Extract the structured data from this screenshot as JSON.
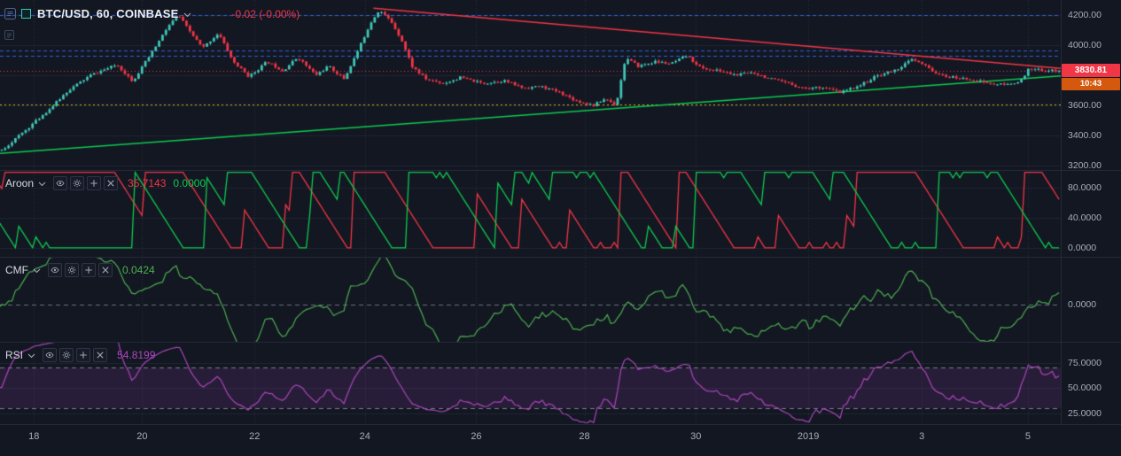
{
  "header": {
    "symbol_title": "BTC/USD, 60, COINBASE",
    "change_text": "-0.02 (-0.00%)",
    "change_color": "#f23645"
  },
  "legend_buttons": [
    "eye",
    "gear",
    "plus",
    "close"
  ],
  "panels": {
    "aroon": {
      "label": "Aroon",
      "values": [
        {
          "text": "35.7143",
          "color": "#f23645"
        },
        {
          "text": "0.0000",
          "color": "#0ecb4f"
        }
      ]
    },
    "cmf": {
      "label": "CMF",
      "value": {
        "text": "0.0424",
        "color": "#4caf50"
      }
    },
    "rsi": {
      "label": "RSI",
      "value": {
        "text": "54.8199",
        "color": "#ab47bc"
      }
    }
  },
  "price_tag": {
    "text": "3830.81",
    "bg": "#f23645"
  },
  "countdown_tag": {
    "text": "10:43",
    "bg": "#d4590e"
  },
  "scales": {
    "price": {
      "labels": [
        {
          "text": "4200.00",
          "v": 4200
        },
        {
          "text": "4000.00",
          "v": 4000
        },
        {
          "text": "3600.00",
          "v": 3600
        },
        {
          "text": "3400.00",
          "v": 3400
        },
        {
          "text": "3200.00",
          "v": 3200
        }
      ]
    },
    "aroon": {
      "labels": [
        {
          "text": "80.0000",
          "v": 80
        },
        {
          "text": "40.0000",
          "v": 40
        },
        {
          "text": "0.0000",
          "v": 0
        }
      ]
    },
    "cmf": {
      "labels": [
        {
          "text": "0.0000",
          "v": 0
        }
      ]
    },
    "rsi": {
      "labels": [
        {
          "text": "75.0000",
          "v": 75
        },
        {
          "text": "50.0000",
          "v": 50
        },
        {
          "text": "25.0000",
          "v": 25
        }
      ]
    }
  },
  "theme": {
    "background": "#131722",
    "axis_text": "#a6adbb",
    "up_color": "#3fc6b6",
    "down_color": "#f23645"
  },
  "chart_data": {
    "type": "candlestick",
    "symbol": "BTC/USD",
    "interval": "60",
    "exchange": "COINBASE",
    "seed": 11,
    "up_color": "#3fc6b6",
    "down_color": "#f23645",
    "x_ticks": [
      {
        "label": "18",
        "t": 0.032
      },
      {
        "label": "20",
        "t": 0.134
      },
      {
        "label": "22",
        "t": 0.24
      },
      {
        "label": "24",
        "t": 0.344
      },
      {
        "label": "26",
        "t": 0.449
      },
      {
        "label": "28",
        "t": 0.551
      },
      {
        "label": "30",
        "t": 0.656
      },
      {
        "label": "2019",
        "t": 0.762
      },
      {
        "label": "3",
        "t": 0.869
      },
      {
        "label": "5",
        "t": 0.969
      }
    ],
    "panes": {
      "price": {
        "range": [
          3170,
          4300
        ],
        "grid": [
          3200,
          3400,
          3600,
          3800,
          4000,
          4200
        ],
        "candle_count": 310,
        "last_price": 3830.81,
        "levels": {
          "blue_dashed": [
            4200,
            3966,
            3931
          ],
          "blue_color": "#2f62d8",
          "yellow_dotted": 3605,
          "yellow_color": "#d9b918",
          "red_dotted": 3830.81,
          "red_color": "#f23645"
        },
        "trendlines": [
          {
            "color": "#f23645",
            "from": [
              0.352,
              4245
            ],
            "to": [
              1.0,
              3845
            ]
          },
          {
            "color": "#0ecb4f",
            "from": [
              0.0,
              3280
            ],
            "to": [
              1.0,
              3795
            ]
          }
        ],
        "price_anchors": [
          [
            0.0,
            3300
          ],
          [
            0.025,
            3450
          ],
          [
            0.046,
            3580
          ],
          [
            0.063,
            3700
          ],
          [
            0.084,
            3800
          ],
          [
            0.109,
            3870
          ],
          [
            0.124,
            3760
          ],
          [
            0.142,
            3950
          ],
          [
            0.157,
            4120
          ],
          [
            0.167,
            4200
          ],
          [
            0.177,
            4100
          ],
          [
            0.19,
            3980
          ],
          [
            0.205,
            4080
          ],
          [
            0.219,
            3890
          ],
          [
            0.234,
            3790
          ],
          [
            0.251,
            3890
          ],
          [
            0.266,
            3830
          ],
          [
            0.28,
            3920
          ],
          [
            0.297,
            3800
          ],
          [
            0.309,
            3860
          ],
          [
            0.324,
            3775
          ],
          [
            0.338,
            3980
          ],
          [
            0.349,
            4150
          ],
          [
            0.357,
            4235
          ],
          [
            0.368,
            4160
          ],
          [
            0.378,
            4040
          ],
          [
            0.388,
            3860
          ],
          [
            0.401,
            3775
          ],
          [
            0.418,
            3745
          ],
          [
            0.434,
            3785
          ],
          [
            0.455,
            3745
          ],
          [
            0.475,
            3765
          ],
          [
            0.493,
            3715
          ],
          [
            0.51,
            3725
          ],
          [
            0.528,
            3685
          ],
          [
            0.545,
            3625
          ],
          [
            0.56,
            3600
          ],
          [
            0.571,
            3645
          ],
          [
            0.581,
            3600
          ],
          [
            0.59,
            3915
          ],
          [
            0.602,
            3860
          ],
          [
            0.618,
            3890
          ],
          [
            0.633,
            3875
          ],
          [
            0.648,
            3930
          ],
          [
            0.662,
            3845
          ],
          [
            0.678,
            3830
          ],
          [
            0.695,
            3800
          ],
          [
            0.71,
            3820
          ],
          [
            0.727,
            3775
          ],
          [
            0.744,
            3745
          ],
          [
            0.76,
            3712
          ],
          [
            0.777,
            3722
          ],
          [
            0.792,
            3685
          ],
          [
            0.804,
            3712
          ],
          [
            0.815,
            3745
          ],
          [
            0.829,
            3800
          ],
          [
            0.845,
            3832
          ],
          [
            0.861,
            3905
          ],
          [
            0.874,
            3860
          ],
          [
            0.887,
            3800
          ],
          [
            0.902,
            3782
          ],
          [
            0.919,
            3770
          ],
          [
            0.936,
            3742
          ],
          [
            0.952,
            3736
          ],
          [
            0.966,
            3772
          ],
          [
            0.971,
            3838
          ],
          [
            1.0,
            3829
          ]
        ]
      },
      "aroon": {
        "range": [
          -12,
          102
        ],
        "grid": [
          0,
          40,
          80
        ],
        "period": 14,
        "up_color": "#f23645",
        "down_color": "#0ecb4f",
        "last_values": [
          35.7143,
          0.0
        ]
      },
      "cmf": {
        "range": [
          -0.35,
          0.45
        ],
        "grid": [],
        "period": 20,
        "color": "#4caf50",
        "last_value": 0.0424
      },
      "rsi": {
        "range": [
          15,
          95
        ],
        "grid": [
          25,
          50,
          75
        ],
        "period": 14,
        "color": "#ab47bc",
        "band": [
          30,
          70
        ],
        "band_fill": "rgba(171,71,188,0.14)",
        "last_value": 54.8199
      }
    }
  }
}
